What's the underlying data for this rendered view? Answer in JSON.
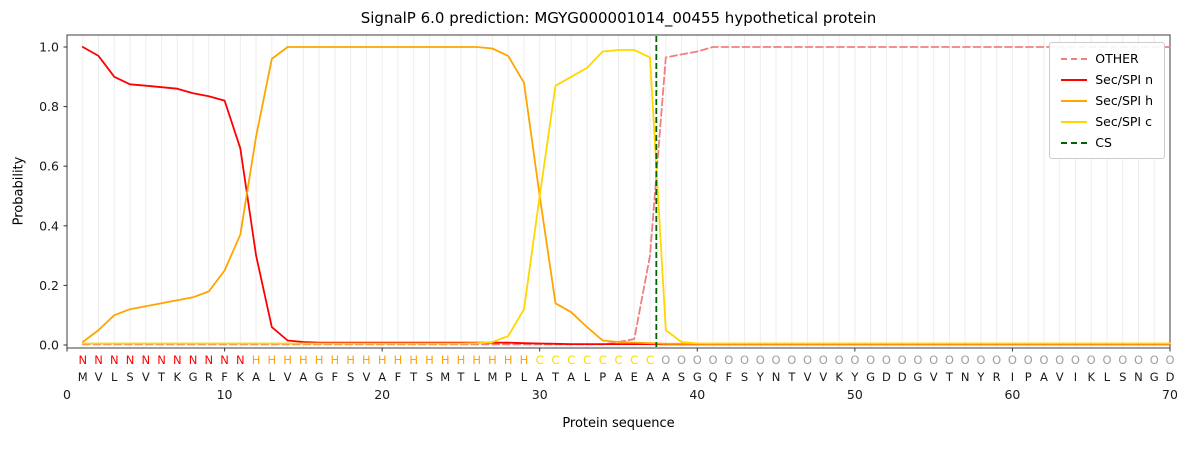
{
  "chart_data": {
    "type": "line",
    "title": "SignalP 6.0 prediction: MGYG000001014_00455 hypothetical protein",
    "xlabel": "Protein sequence",
    "ylabel": "Probability",
    "xlim": [
      0,
      70
    ],
    "ylim": [
      0.0,
      1.0
    ],
    "x_ticks": [
      0,
      10,
      20,
      30,
      40,
      50,
      60,
      70
    ],
    "y_ticks": [
      0.0,
      0.2,
      0.4,
      0.6,
      0.8,
      1.0
    ],
    "grid": "vertical-per-residue",
    "legend_position": "upper-right",
    "x_start": 1,
    "series": [
      {
        "name": "OTHER",
        "color": "#f08080",
        "dash": true,
        "values": [
          0.002,
          0.002,
          0.002,
          0.002,
          0.002,
          0.002,
          0.002,
          0.002,
          0.002,
          0.002,
          0.002,
          0.002,
          0.002,
          0.002,
          0.002,
          0.002,
          0.002,
          0.002,
          0.002,
          0.002,
          0.002,
          0.002,
          0.002,
          0.002,
          0.002,
          0.002,
          0.002,
          0.002,
          0.002,
          0.002,
          0.002,
          0.002,
          0.002,
          0.002,
          0.01,
          0.02,
          0.3,
          0.965,
          0.975,
          0.985,
          1.0,
          1.0,
          1.0,
          1.0,
          1.0,
          1.0,
          1.0,
          1.0,
          1.0,
          1.0,
          1.0,
          1.0,
          1.0,
          1.0,
          1.0,
          1.0,
          1.0,
          1.0,
          1.0,
          1.0,
          1.0,
          1.0,
          1.0,
          1.0,
          1.0,
          1.0,
          1.0,
          1.0,
          1.0,
          1.0
        ]
      },
      {
        "name": "Sec/SPI n",
        "color": "#ff0000",
        "dash": false,
        "values": [
          1.0,
          0.97,
          0.9,
          0.875,
          0.87,
          0.865,
          0.86,
          0.845,
          0.835,
          0.82,
          0.66,
          0.3,
          0.06,
          0.015,
          0.01,
          0.008,
          0.008,
          0.008,
          0.008,
          0.008,
          0.008,
          0.008,
          0.008,
          0.008,
          0.008,
          0.008,
          0.008,
          0.008,
          0.006,
          0.005,
          0.004,
          0.003,
          0.003,
          0.003,
          0.003,
          0.003,
          0.003,
          0.002,
          0.002,
          0.002,
          0.002,
          0.002,
          0.002,
          0.002,
          0.002,
          0.002,
          0.002,
          0.002,
          0.002,
          0.002,
          0.002,
          0.002,
          0.002,
          0.002,
          0.002,
          0.002,
          0.002,
          0.002,
          0.002,
          0.002,
          0.002,
          0.002,
          0.002,
          0.002,
          0.002,
          0.002,
          0.002,
          0.002,
          0.002,
          0.002
        ]
      },
      {
        "name": "Sec/SPI h",
        "color": "#ffa500",
        "dash": false,
        "values": [
          0.01,
          0.05,
          0.1,
          0.12,
          0.13,
          0.14,
          0.15,
          0.16,
          0.18,
          0.25,
          0.37,
          0.7,
          0.96,
          1.0,
          1.0,
          1.0,
          1.0,
          1.0,
          1.0,
          1.0,
          1.0,
          1.0,
          1.0,
          1.0,
          1.0,
          1.0,
          0.995,
          0.97,
          0.88,
          0.5,
          0.14,
          0.11,
          0.06,
          0.015,
          0.01,
          0.008,
          0.006,
          0.004,
          0.004,
          0.004,
          0.004,
          0.004,
          0.004,
          0.004,
          0.004,
          0.004,
          0.004,
          0.004,
          0.004,
          0.004,
          0.004,
          0.004,
          0.004,
          0.004,
          0.004,
          0.004,
          0.004,
          0.004,
          0.004,
          0.004,
          0.004,
          0.004,
          0.004,
          0.004,
          0.004,
          0.004,
          0.004,
          0.004,
          0.004,
          0.004
        ]
      },
      {
        "name": "Sec/SPI c",
        "color": "#ffd700",
        "dash": false,
        "values": [
          0.005,
          0.005,
          0.005,
          0.005,
          0.005,
          0.005,
          0.005,
          0.005,
          0.005,
          0.005,
          0.005,
          0.005,
          0.005,
          0.005,
          0.005,
          0.005,
          0.005,
          0.005,
          0.005,
          0.005,
          0.005,
          0.005,
          0.005,
          0.005,
          0.005,
          0.006,
          0.01,
          0.03,
          0.12,
          0.5,
          0.87,
          0.9,
          0.93,
          0.985,
          0.99,
          0.99,
          0.965,
          0.05,
          0.01,
          0.005,
          0.005,
          0.005,
          0.005,
          0.005,
          0.005,
          0.005,
          0.005,
          0.005,
          0.005,
          0.005,
          0.005,
          0.005,
          0.005,
          0.005,
          0.005,
          0.005,
          0.005,
          0.005,
          0.005,
          0.005,
          0.005,
          0.005,
          0.005,
          0.005,
          0.005,
          0.005,
          0.005,
          0.005,
          0.005,
          0.005
        ]
      }
    ],
    "cs_marker": {
      "label": "CS",
      "position": 37,
      "color": "#006400",
      "dash": true
    },
    "sequence": "MVLSVTKGRFKALVAGFSVAFTSMTLMPLATALPAEAASGQFSYNTVVKYGDDGVTNYRIPAVIKLSNGD",
    "region_labels": "NNNNNNNNNNNHHHHHHHHHHHHHHHHHHCCCCCCCCOOOOOOOOOOOOOOOOOOOOOOOOOOOOOOOOO",
    "region_colors": {
      "N": "#ff0000",
      "H": "#ffa500",
      "C": "#ffd700",
      "O": "#a0a0a0"
    },
    "sequence_color": "#1a1a1a"
  }
}
